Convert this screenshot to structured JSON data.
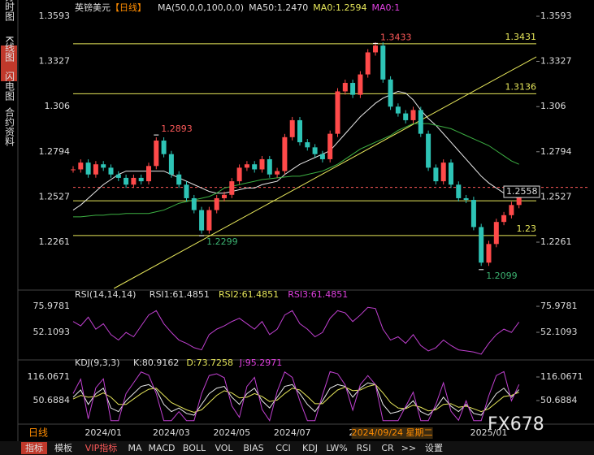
{
  "side_tabs": [
    "分时图",
    "K线图",
    "闪电图",
    "合约资料"
  ],
  "header": {
    "symbol": "英镑美元",
    "period": "【日线】",
    "ma_setting": "MA(50,0,0,100,0,0)",
    "ma1": "MA50:1.2470",
    "ma2": "MA0:1.2594",
    "ma3": "MA0:1"
  },
  "period_label": "日线",
  "watermark": "FX678",
  "toolbar": [
    "指标",
    "模板",
    "VIP指标",
    "MA",
    "MACD",
    "BOLL",
    "VOL",
    "BIAS",
    "CCI",
    "KDJ",
    "LW%",
    "RSI",
    "CR",
    ">>",
    "设置"
  ],
  "chart_data": [
    {
      "type": "candle",
      "up_color": "#ff4a4a",
      "down_color": "#2ec4b6",
      "categories": [
        null,
        null,
        null,
        null,
        "2024/01",
        null,
        null,
        null,
        null,
        null,
        null,
        null,
        null,
        "2024/03",
        null,
        null,
        null,
        null,
        null,
        null,
        null,
        "2024/05",
        null,
        null,
        null,
        null,
        null,
        null,
        null,
        "2024/07",
        null,
        null,
        null,
        null,
        null,
        null,
        null,
        null,
        "2024",
        null,
        null,
        null,
        null,
        null,
        null,
        null,
        null,
        null,
        null,
        null,
        null,
        null,
        null,
        null,
        null,
        "2025/01",
        null,
        null,
        null,
        null
      ],
      "cursor": {
        "index": 42,
        "label": "2024/09/24 星期二"
      },
      "values": [
        1.269,
        1.273,
        1.266,
        1.272,
        1.27,
        1.266,
        1.264,
        1.26,
        1.264,
        1.262,
        1.271,
        1.286,
        1.278,
        1.266,
        1.26,
        1.252,
        1.245,
        1.233,
        1.245,
        1.252,
        1.254,
        1.262,
        1.27,
        1.272,
        1.269,
        1.275,
        1.266,
        1.268,
        1.288,
        1.298,
        1.285,
        1.282,
        1.278,
        1.275,
        1.29,
        1.315,
        1.32,
        1.313,
        1.325,
        1.338,
        1.342,
        1.322,
        1.306,
        1.302,
        1.298,
        1.304,
        1.29,
        1.27,
        1.262,
        1.273,
        1.26,
        1.252,
        1.251,
        1.235,
        1.214,
        1.225,
        1.238,
        1.242,
        1.248,
        1.2558
      ],
      "series": [
        {
          "color": "#e8e8e8",
          "values": [
            1.245,
            1.248,
            1.252,
            1.256,
            1.26,
            1.263,
            1.266,
            1.268,
            1.268,
            1.268,
            1.268,
            1.268,
            1.268,
            1.266,
            1.264,
            1.262,
            1.26,
            1.258,
            1.256,
            1.255,
            1.255,
            1.256,
            1.257,
            1.258,
            1.258,
            1.26,
            1.261,
            1.262,
            1.266,
            1.269,
            1.272,
            1.274,
            1.276,
            1.278,
            1.28,
            1.285,
            1.29,
            1.295,
            1.3,
            1.304,
            1.308,
            1.311,
            1.313,
            1.315,
            1.314,
            1.31,
            1.304,
            1.299,
            1.295,
            1.29,
            1.285,
            1.28,
            1.275,
            1.27,
            1.265,
            1.261,
            1.258,
            1.255,
            1.253,
            1.252
          ]
        },
        {
          "color": "#3cb043",
          "values": [
            1.241,
            1.241,
            1.2415,
            1.242,
            1.242,
            1.2425,
            1.2425,
            1.243,
            1.243,
            1.243,
            1.243,
            1.244,
            1.245,
            1.247,
            1.249,
            1.25,
            1.251,
            1.252,
            1.253,
            1.255,
            1.258,
            1.259,
            1.26,
            1.261,
            1.262,
            1.263,
            1.2635,
            1.264,
            1.2645,
            1.265,
            1.265,
            1.266,
            1.267,
            1.268,
            1.27,
            1.272,
            1.275,
            1.278,
            1.281,
            1.283,
            1.285,
            1.287,
            1.289,
            1.292,
            1.294,
            1.296,
            1.296,
            1.296,
            1.295,
            1.294,
            1.293,
            1.291,
            1.289,
            1.287,
            1.285,
            1.283,
            1.28,
            1.277,
            1.274,
            1.272
          ]
        }
      ],
      "ylim": [
        1.1988,
        1.3593
      ],
      "yticks": [
        1.2261,
        1.2527,
        1.2794,
        1.306,
        1.3327,
        1.3593
      ],
      "levels": [
        1.3431,
        1.3136,
        1.2505,
        1.23
      ],
      "level_color": "#e6e65a",
      "dashed_level": 1.2584,
      "last": 1.2558,
      "trendline": {
        "x": [
          5.4,
          61.3
        ],
        "values": [
          1.1988,
          1.3354
        ],
        "color": "#e6e65a"
      },
      "point_labels": [
        {
          "x": 40,
          "value": 1.3433,
          "color": "#ff5a5a"
        },
        {
          "x": 11,
          "value": 1.2893,
          "color": "#ff5a5a"
        },
        {
          "x": 17,
          "value": 1.2299,
          "color": "#3cb371"
        },
        {
          "x": 54,
          "value": 1.2099,
          "color": "#3cb371"
        }
      ]
    },
    {
      "type": "line",
      "texts": [
        "RSI(14,14,14)",
        "RSI1:61.4851",
        "RSI2:61.4851",
        "RSI3:61.4851"
      ],
      "text_colors": [
        "#dddddd",
        "#dddddd",
        "#e6e65a",
        "#e040e0"
      ],
      "series": [
        {
          "color": "#c040d0",
          "values": [
            62,
            58,
            66,
            55,
            60,
            50,
            45,
            52,
            48,
            58,
            68,
            72,
            60,
            52,
            45,
            42,
            38,
            36,
            50,
            55,
            58,
            62,
            65,
            60,
            55,
            62,
            50,
            55,
            68,
            72,
            60,
            55,
            48,
            52,
            65,
            72,
            70,
            62,
            68,
            75,
            74,
            55,
            45,
            48,
            42,
            50,
            40,
            35,
            38,
            45,
            40,
            36,
            35,
            34,
            32,
            42,
            50,
            55,
            52,
            61.4851
          ]
        }
      ],
      "ylim": [
        28.98,
        87.17
      ],
      "yticks": [
        52.1093,
        75.9781
      ]
    },
    {
      "type": "line",
      "texts": [
        "KDJ(9,3,3)",
        "K:80.9162",
        "D:73.7258",
        "J:95.2971"
      ],
      "text_colors": [
        "#dddddd",
        "#dddddd",
        "#e6e65a",
        "#e040e0"
      ],
      "series": [
        {
          "color": "#e8e8e8",
          "values": [
            60,
            80,
            40,
            70,
            85,
            30,
            20,
            50,
            70,
            90,
            95,
            80,
            40,
            20,
            30,
            15,
            10,
            40,
            70,
            85,
            90,
            60,
            40,
            70,
            85,
            50,
            30,
            60,
            90,
            95,
            70,
            40,
            20,
            50,
            85,
            95,
            90,
            60,
            85,
            100,
            95,
            40,
            15,
            20,
            30,
            50,
            20,
            10,
            30,
            60,
            35,
            20,
            40,
            15,
            10,
            40,
            70,
            85,
            60,
            80.9162
          ]
        },
        {
          "color": "#e6e65a",
          "values": [
            55,
            65,
            60,
            62,
            72,
            60,
            40,
            40,
            55,
            70,
            82,
            85,
            65,
            45,
            35,
            25,
            18,
            25,
            45,
            65,
            78,
            72,
            58,
            60,
            70,
            62,
            48,
            52,
            70,
            85,
            80,
            62,
            42,
            42,
            62,
            80,
            88,
            78,
            80,
            90,
            95,
            72,
            45,
            30,
            28,
            38,
            32,
            22,
            25,
            40,
            42,
            32,
            35,
            28,
            20,
            28,
            45,
            62,
            65,
            73.7258
          ]
        },
        {
          "color": "#c040d0",
          "values": [
            70,
            110,
            0,
            86,
            111,
            -5,
            -5,
            70,
            100,
            130,
            121,
            70,
            -5,
            -5,
            20,
            -5,
            -5,
            70,
            120,
            125,
            114,
            36,
            4,
            90,
            115,
            26,
            -5,
            76,
            130,
            115,
            50,
            -5,
            -5,
            66,
            131,
            125,
            94,
            24,
            95,
            120,
            95,
            -5,
            -5,
            -5,
            34,
            74,
            -5,
            -5,
            40,
            100,
            21,
            -4,
            50,
            -5,
            -5,
            64,
            120,
            131,
            50,
            95.2971
          ]
        }
      ],
      "ylim": [
        -5.7,
        152.1
      ],
      "yticks": [
        50.6884,
        116.0671
      ]
    }
  ]
}
